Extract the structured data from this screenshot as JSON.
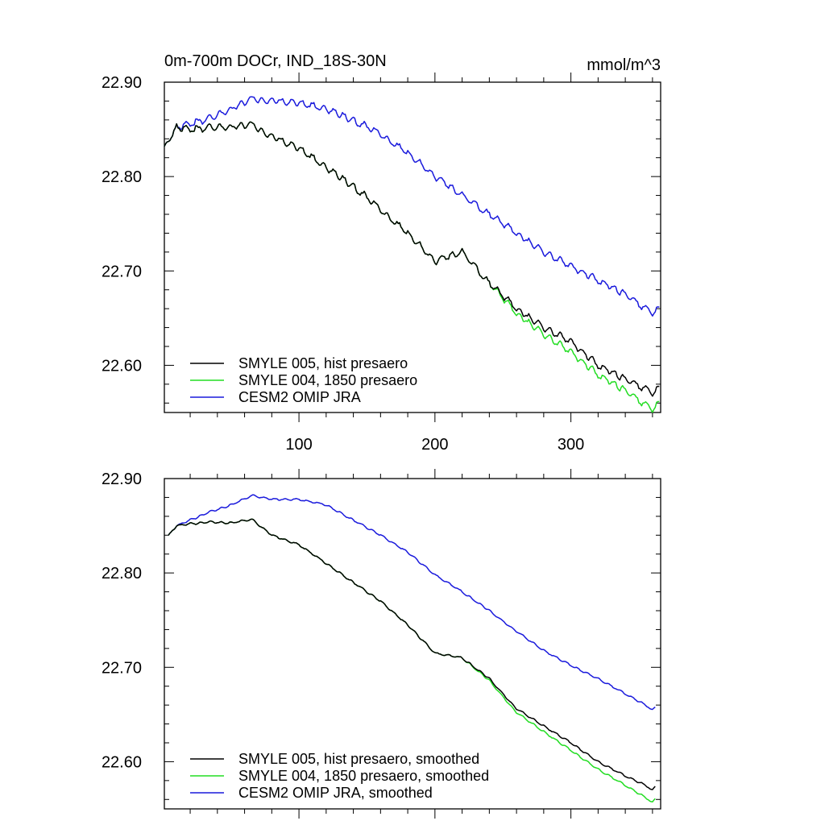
{
  "figure": {
    "title": "0m-700m DOCr, IND_18S-30N",
    "units": "mmol/m^3"
  },
  "colors": {
    "smyle005": "#000000",
    "smyle004": "#22dd22",
    "omip": "#1a1adc",
    "axis": "#000000"
  },
  "chart_data": [
    {
      "type": "line",
      "title": "0m-700m DOCr, IND_18S-30N",
      "units": "mmol/m^3",
      "xlabel": "",
      "ylabel": "",
      "xlim": [
        1,
        366
      ],
      "ylim": [
        22.55,
        22.9
      ],
      "xticks": [
        100,
        200,
        300
      ],
      "xtick_labels": [
        "100",
        "200",
        "300"
      ],
      "yticks": [
        22.6,
        22.7,
        22.8,
        22.9
      ],
      "ytick_labels": [
        "22.60",
        "22.70",
        "22.80",
        "22.90"
      ],
      "grid": false,
      "legend_position": "bottom-left",
      "smoothed": false,
      "series": [
        {
          "name": "SMYLE 005, hist presaero",
          "color_key": "smyle005",
          "anchors_x": [
            1,
            6,
            10,
            20,
            35,
            50,
            65,
            80,
            100,
            120,
            140,
            160,
            180,
            200,
            220,
            240,
            260,
            280,
            300,
            320,
            340,
            355,
            360,
            365
          ],
          "anchors_y": [
            22.832,
            22.843,
            22.852,
            22.85,
            22.852,
            22.853,
            22.855,
            22.842,
            22.83,
            22.81,
            22.79,
            22.765,
            22.74,
            22.71,
            22.72,
            22.687,
            22.66,
            22.64,
            22.625,
            22.6,
            22.585,
            22.575,
            22.57,
            22.576
          ]
        },
        {
          "name": "SMYLE 004, 1850 presaero",
          "color_key": "smyle004",
          "anchors_x": [
            1,
            6,
            10,
            20,
            35,
            50,
            65,
            80,
            100,
            120,
            140,
            160,
            180,
            200,
            220,
            240,
            260,
            280,
            300,
            320,
            340,
            355,
            360,
            365
          ],
          "anchors_y": [
            22.832,
            22.843,
            22.852,
            22.85,
            22.852,
            22.853,
            22.855,
            22.842,
            22.83,
            22.81,
            22.79,
            22.765,
            22.74,
            22.71,
            22.72,
            22.687,
            22.655,
            22.633,
            22.614,
            22.59,
            22.573,
            22.558,
            22.553,
            22.56
          ]
        },
        {
          "name": "CESM2 OMIP JRA",
          "color_key": "omip",
          "anchors_x": [
            1,
            6,
            10,
            20,
            35,
            50,
            65,
            80,
            100,
            120,
            140,
            160,
            180,
            200,
            220,
            240,
            260,
            280,
            300,
            320,
            340,
            355,
            360,
            365
          ],
          "anchors_y": [
            22.832,
            22.843,
            22.852,
            22.856,
            22.862,
            22.872,
            22.882,
            22.88,
            22.878,
            22.872,
            22.86,
            22.845,
            22.825,
            22.8,
            22.78,
            22.76,
            22.74,
            22.72,
            22.705,
            22.69,
            22.675,
            22.66,
            22.655,
            22.66
          ]
        }
      ]
    },
    {
      "type": "line",
      "title": "",
      "units": "",
      "xlabel": "",
      "ylabel": "",
      "xlim": [
        1,
        366
      ],
      "ylim": [
        22.55,
        22.9
      ],
      "xticks": [
        100,
        200,
        300
      ],
      "xtick_labels": [],
      "yticks": [
        22.6,
        22.7,
        22.8,
        22.9
      ],
      "ytick_labels": [
        "22.60",
        "22.70",
        "22.80",
        "22.90"
      ],
      "grid": false,
      "legend_position": "bottom-left",
      "smoothed": true,
      "series": [
        {
          "name": "SMYLE 005, hist presaero, smoothed",
          "color_key": "smyle005",
          "anchors_x": [
            4,
            10,
            20,
            35,
            50,
            65,
            80,
            100,
            120,
            140,
            160,
            180,
            200,
            220,
            240,
            260,
            280,
            300,
            320,
            340,
            355,
            360,
            362
          ],
          "anchors_y": [
            22.84,
            22.85,
            22.852,
            22.854,
            22.853,
            22.857,
            22.84,
            22.83,
            22.81,
            22.79,
            22.77,
            22.745,
            22.715,
            22.71,
            22.688,
            22.656,
            22.638,
            22.62,
            22.6,
            22.585,
            22.575,
            22.57,
            22.573
          ]
        },
        {
          "name": "SMYLE 004, 1850 presaero, smoothed",
          "color_key": "smyle004",
          "anchors_x": [
            4,
            10,
            20,
            35,
            50,
            65,
            80,
            100,
            120,
            140,
            160,
            180,
            200,
            220,
            240,
            260,
            280,
            300,
            320,
            340,
            355,
            360,
            362
          ],
          "anchors_y": [
            22.84,
            22.85,
            22.852,
            22.854,
            22.853,
            22.857,
            22.84,
            22.83,
            22.81,
            22.79,
            22.77,
            22.745,
            22.715,
            22.71,
            22.686,
            22.652,
            22.632,
            22.612,
            22.592,
            22.575,
            22.562,
            22.557,
            22.56
          ]
        },
        {
          "name": "CESM2 OMIP JRA, smoothed",
          "color_key": "omip",
          "anchors_x": [
            4,
            10,
            20,
            35,
            50,
            65,
            80,
            100,
            120,
            140,
            160,
            180,
            200,
            220,
            240,
            260,
            280,
            300,
            320,
            340,
            355,
            360,
            362
          ],
          "anchors_y": [
            22.84,
            22.85,
            22.856,
            22.865,
            22.872,
            22.882,
            22.878,
            22.878,
            22.872,
            22.856,
            22.84,
            22.822,
            22.798,
            22.78,
            22.76,
            22.738,
            22.718,
            22.702,
            22.688,
            22.672,
            22.66,
            22.655,
            22.657
          ]
        }
      ]
    }
  ]
}
